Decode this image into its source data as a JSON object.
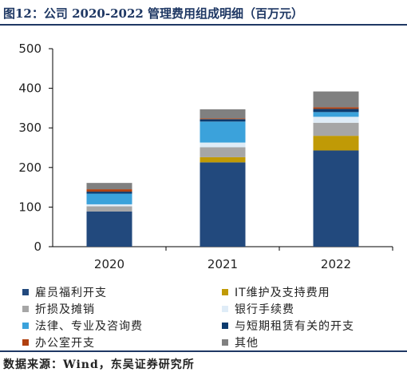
{
  "header": {
    "title": "图12：公司 2020-2022 管理费用组成明细（百万元）"
  },
  "footer": {
    "source": "数据来源：Wind，东吴证券研究所"
  },
  "chart_data": {
    "type": "bar",
    "stacked": true,
    "categories": [
      "2020",
      "2021",
      "2022"
    ],
    "ylim": [
      0,
      500
    ],
    "yticks": [
      0,
      100,
      200,
      300,
      400,
      500
    ],
    "grid": false,
    "legend_position": "bottom",
    "series": [
      {
        "name": "雇员福利开支",
        "color": "#22497d",
        "values": [
          89,
          213,
          243
        ]
      },
      {
        "name": "IT维护及支持费用",
        "color": "#c09a06",
        "values": [
          0,
          13,
          37
        ]
      },
      {
        "name": "折损及摊销",
        "color": "#a6a6a6",
        "values": [
          13,
          25,
          33
        ]
      },
      {
        "name": "银行手续费",
        "color": "#dfecf7",
        "values": [
          5,
          12,
          15
        ]
      },
      {
        "name": "法律、专业及咨询费",
        "color": "#3ba2db",
        "values": [
          27,
          53,
          12
        ]
      },
      {
        "name": "与短期租赁有关的开支",
        "color": "#0d3b6e",
        "values": [
          5,
          6,
          8
        ]
      },
      {
        "name": "办公室开支",
        "color": "#b0400f",
        "values": [
          6,
          2,
          4
        ]
      },
      {
        "name": "其他",
        "color": "#808080",
        "values": [
          16,
          23,
          40
        ]
      }
    ]
  }
}
